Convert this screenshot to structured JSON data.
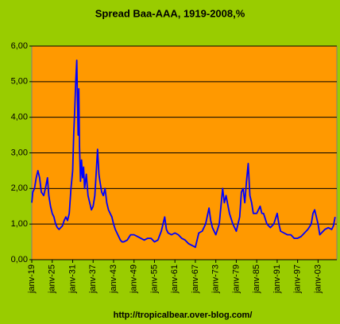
{
  "chart_data": {
    "type": "line",
    "title": "Spread Baa-AAA, 1919-2008,%",
    "footer": "http://tropicalbear.over-blog.com/",
    "x": [
      1919.0,
      1919.3,
      1919.8,
      1920.3,
      1920.8,
      1921.3,
      1921.8,
      1922.5,
      1923,
      1923.6,
      1924,
      1924.5,
      1925,
      1925.5,
      1926,
      1926.5,
      1927,
      1927.5,
      1928,
      1928.5,
      1929,
      1929.5,
      1930,
      1930.5,
      1931,
      1931.3,
      1931.6,
      1931.9,
      1932.2,
      1932.4,
      1932.6,
      1932.8,
      1933,
      1933.3,
      1933.6,
      1933.9,
      1934.2,
      1934.5,
      1935,
      1935.5,
      1936,
      1936.5,
      1937,
      1937.5,
      1938,
      1938.3,
      1938.7,
      1939,
      1939.5,
      1940,
      1940.5,
      1941,
      1941.5,
      1942,
      1942.5,
      1943,
      1943.5,
      1944,
      1944.5,
      1945,
      1945.5,
      1946,
      1947,
      1948,
      1949,
      1950,
      1951,
      1952,
      1953,
      1954,
      1955,
      1956,
      1957,
      1958,
      1958.5,
      1959,
      1960,
      1961,
      1962,
      1963,
      1964,
      1965,
      1966,
      1967,
      1967.5,
      1968,
      1969,
      1970,
      1971,
      1971.5,
      1972,
      1973,
      1974,
      1975,
      1975.5,
      1976,
      1977,
      1978,
      1979,
      1980,
      1980.5,
      1981,
      1981.5,
      1982,
      1982.5,
      1983,
      1983.5,
      1984,
      1985,
      1986,
      1986.5,
      1987,
      1988,
      1989,
      1990,
      1991,
      1991.5,
      1992,
      1993,
      1994,
      1995,
      1996,
      1997,
      1998,
      1999,
      2000,
      2001,
      2001.5,
      2002,
      2002.5,
      2003,
      2003.5,
      2004,
      2005,
      2006,
      2007,
      2007.5,
      2008
    ],
    "values": [
      1.6,
      1.9,
      2.0,
      2.3,
      2.5,
      2.3,
      1.9,
      1.8,
      2.0,
      2.3,
      1.8,
      1.5,
      1.3,
      1.2,
      1.0,
      0.9,
      0.85,
      0.9,
      0.95,
      1.1,
      1.2,
      1.1,
      1.3,
      2.0,
      2.5,
      3.5,
      4.2,
      5.0,
      5.6,
      4.5,
      3.5,
      4.8,
      3.2,
      2.2,
      2.8,
      2.3,
      2.6,
      2.0,
      2.4,
      1.8,
      1.6,
      1.4,
      1.5,
      1.8,
      2.6,
      3.1,
      2.4,
      2.2,
      1.9,
      1.8,
      2.0,
      1.6,
      1.4,
      1.3,
      1.2,
      1.0,
      0.85,
      0.75,
      0.65,
      0.55,
      0.5,
      0.5,
      0.55,
      0.7,
      0.7,
      0.65,
      0.6,
      0.55,
      0.6,
      0.6,
      0.5,
      0.55,
      0.8,
      1.2,
      0.85,
      0.75,
      0.7,
      0.75,
      0.7,
      0.6,
      0.55,
      0.45,
      0.4,
      0.35,
      0.55,
      0.75,
      0.8,
      1.0,
      1.45,
      1.1,
      0.9,
      0.7,
      1.0,
      2.0,
      1.6,
      1.8,
      1.3,
      1.0,
      0.8,
      1.2,
      1.9,
      2.0,
      1.6,
      2.2,
      2.7,
      1.8,
      1.6,
      1.3,
      1.3,
      1.5,
      1.3,
      1.3,
      1.0,
      0.9,
      1.0,
      1.3,
      1.0,
      0.8,
      0.75,
      0.7,
      0.7,
      0.6,
      0.6,
      0.65,
      0.75,
      0.85,
      1.0,
      1.3,
      1.4,
      1.2,
      1.0,
      0.7,
      0.75,
      0.85,
      0.9,
      0.85,
      0.95,
      1.2
    ],
    "color": "#0000ff",
    "ylim": [
      0,
      6
    ],
    "yticks": [
      {
        "value": 0,
        "label": "0,00"
      },
      {
        "value": 1,
        "label": "1,00"
      },
      {
        "value": 2,
        "label": "2,00"
      },
      {
        "value": 3,
        "label": "3,00"
      },
      {
        "value": 4,
        "label": "4,00"
      },
      {
        "value": 5,
        "label": "5,00"
      },
      {
        "value": 6,
        "label": "6,00"
      }
    ],
    "xlim": [
      1919,
      2008.5
    ],
    "xticks": [
      {
        "value": 1919,
        "label": "janv-19"
      },
      {
        "value": 1925,
        "label": "janv-25"
      },
      {
        "value": 1931,
        "label": "janv-31"
      },
      {
        "value": 1937,
        "label": "janv-37"
      },
      {
        "value": 1943,
        "label": "janv-43"
      },
      {
        "value": 1949,
        "label": "janv-49"
      },
      {
        "value": 1955,
        "label": "janv-55"
      },
      {
        "value": 1961,
        "label": "janv-61"
      },
      {
        "value": 1967,
        "label": "janv-67"
      },
      {
        "value": 1973,
        "label": "janv-73"
      },
      {
        "value": 1979,
        "label": "janv-79"
      },
      {
        "value": 1985,
        "label": "janv-85"
      },
      {
        "value": 1991,
        "label": "janv-91"
      },
      {
        "value": 1997,
        "label": "janv-97"
      },
      {
        "value": 2003,
        "label": "janv-03"
      }
    ],
    "grid": true
  }
}
